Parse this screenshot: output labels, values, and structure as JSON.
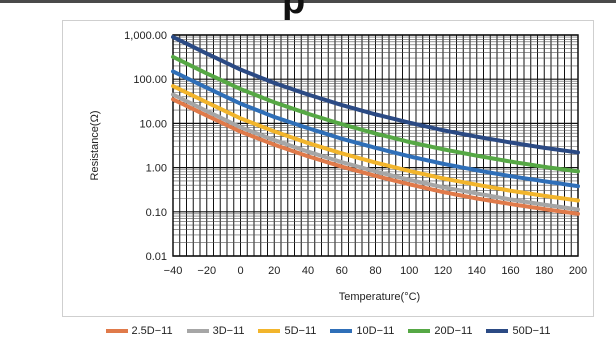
{
  "page": {
    "title_fragment": "p"
  },
  "chart_data": {
    "type": "line",
    "title": "",
    "xlabel": "Temperature(°C)",
    "ylabel": "Resistance(Ω)",
    "xlim": [
      -40,
      200
    ],
    "ylim": [
      0.01,
      1000
    ],
    "yscale": "log",
    "grid": true,
    "x_ticks": [
      -40,
      -20,
      0,
      20,
      40,
      60,
      80,
      100,
      120,
      140,
      160,
      180,
      200
    ],
    "x_tick_labels": [
      "−40",
      "−20",
      "0",
      "20",
      "40",
      "60",
      "80",
      "100",
      "120",
      "140",
      "160",
      "180",
      "200"
    ],
    "y_ticks": [
      0.01,
      0.1,
      1,
      10,
      100,
      1000
    ],
    "y_tick_labels": [
      "0.01",
      "0.10",
      "1.00",
      "10.00",
      "100.00",
      "1,000.00"
    ],
    "legend_position": "bottom",
    "series": [
      {
        "name": "2.5D−11",
        "color": "#e07a4a",
        "x": [
          -40,
          -20,
          0,
          20,
          40,
          60,
          80,
          100,
          120,
          140,
          160,
          180,
          200
        ],
        "values": [
          35,
          15,
          6.5,
          3.3,
          1.8,
          1.05,
          0.65,
          0.42,
          0.28,
          0.2,
          0.15,
          0.115,
          0.09
        ]
      },
      {
        "name": "3D−11",
        "color": "#a6a6a6",
        "x": [
          -40,
          -20,
          0,
          20,
          40,
          60,
          80,
          100,
          120,
          140,
          160,
          180,
          200
        ],
        "values": [
          45,
          19,
          8.2,
          4.2,
          2.3,
          1.33,
          0.82,
          0.53,
          0.36,
          0.26,
          0.19,
          0.145,
          0.113
        ]
      },
      {
        "name": "5D−11",
        "color": "#f2b52c",
        "x": [
          -40,
          -20,
          0,
          20,
          40,
          60,
          80,
          100,
          120,
          140,
          160,
          180,
          200
        ],
        "values": [
          70,
          30,
          13,
          6.6,
          3.6,
          2.1,
          1.3,
          0.84,
          0.57,
          0.41,
          0.3,
          0.23,
          0.18
        ]
      },
      {
        "name": "10D−11",
        "color": "#2f6fb8",
        "x": [
          -40,
          -20,
          0,
          20,
          40,
          60,
          80,
          100,
          120,
          140,
          160,
          180,
          200
        ],
        "values": [
          150,
          64,
          28,
          14,
          7.8,
          4.5,
          2.8,
          1.8,
          1.22,
          0.87,
          0.64,
          0.49,
          0.38
        ]
      },
      {
        "name": "20D−11",
        "color": "#56a845",
        "x": [
          -40,
          -20,
          0,
          20,
          40,
          60,
          80,
          100,
          120,
          140,
          160,
          180,
          200
        ],
        "values": [
          320,
          135,
          60,
          30,
          16.5,
          9.6,
          5.9,
          3.8,
          2.6,
          1.86,
          1.37,
          1.04,
          0.82
        ]
      },
      {
        "name": "50D−11",
        "color": "#2b4a84",
        "x": [
          -40,
          -20,
          0,
          20,
          40,
          60,
          80,
          100,
          120,
          140,
          160,
          180,
          200
        ],
        "values": [
          900,
          380,
          165,
          82,
          45,
          26,
          16,
          10.4,
          7.0,
          5.0,
          3.7,
          2.8,
          2.2
        ]
      }
    ]
  }
}
